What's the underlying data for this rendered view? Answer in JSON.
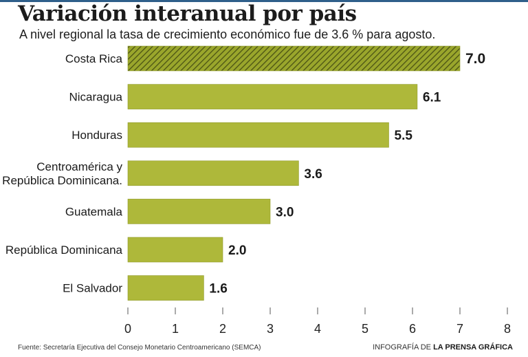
{
  "title": "Variación interanual por país",
  "subtitle": "A nivel regional la tasa de crecimiento económico fue de 3.6 % para agosto.",
  "source": "Fuente:  Secretaría Ejecutiva del Consejo Monetario Centroamericano (SEMCA)",
  "credit": {
    "prefix": "INFOGRAFÍA DE ",
    "brand": "LA PRENSA GRÁFICA"
  },
  "colors": {
    "bar": "#aeb83a",
    "highlight": "#9aa62c",
    "hatch": "#4a5214",
    "text": "#1a1a1a"
  },
  "chart_data": {
    "type": "bar",
    "orientation": "horizontal",
    "categories": [
      [
        "Costa Rica"
      ],
      [
        "Nicaragua"
      ],
      [
        "Honduras"
      ],
      [
        "Centroamérica y",
        "República Dominicana."
      ],
      [
        "Guatemala"
      ],
      [
        "República Dominicana"
      ],
      [
        "El Salvador"
      ]
    ],
    "values": [
      7.0,
      6.1,
      5.5,
      3.6,
      3.0,
      2.0,
      1.6
    ],
    "value_labels": [
      "7.0",
      "6.1",
      "5.5",
      "3.6",
      "3.0",
      "2.0",
      "1.6"
    ],
    "highlight_index": 0,
    "xlim": [
      0,
      8
    ],
    "xticks": [
      "0",
      "1",
      "2",
      "3",
      "4",
      "5",
      "6",
      "7",
      "8"
    ],
    "title": "Variación interanual por país",
    "xlabel": "",
    "ylabel": "",
    "grid": false
  }
}
